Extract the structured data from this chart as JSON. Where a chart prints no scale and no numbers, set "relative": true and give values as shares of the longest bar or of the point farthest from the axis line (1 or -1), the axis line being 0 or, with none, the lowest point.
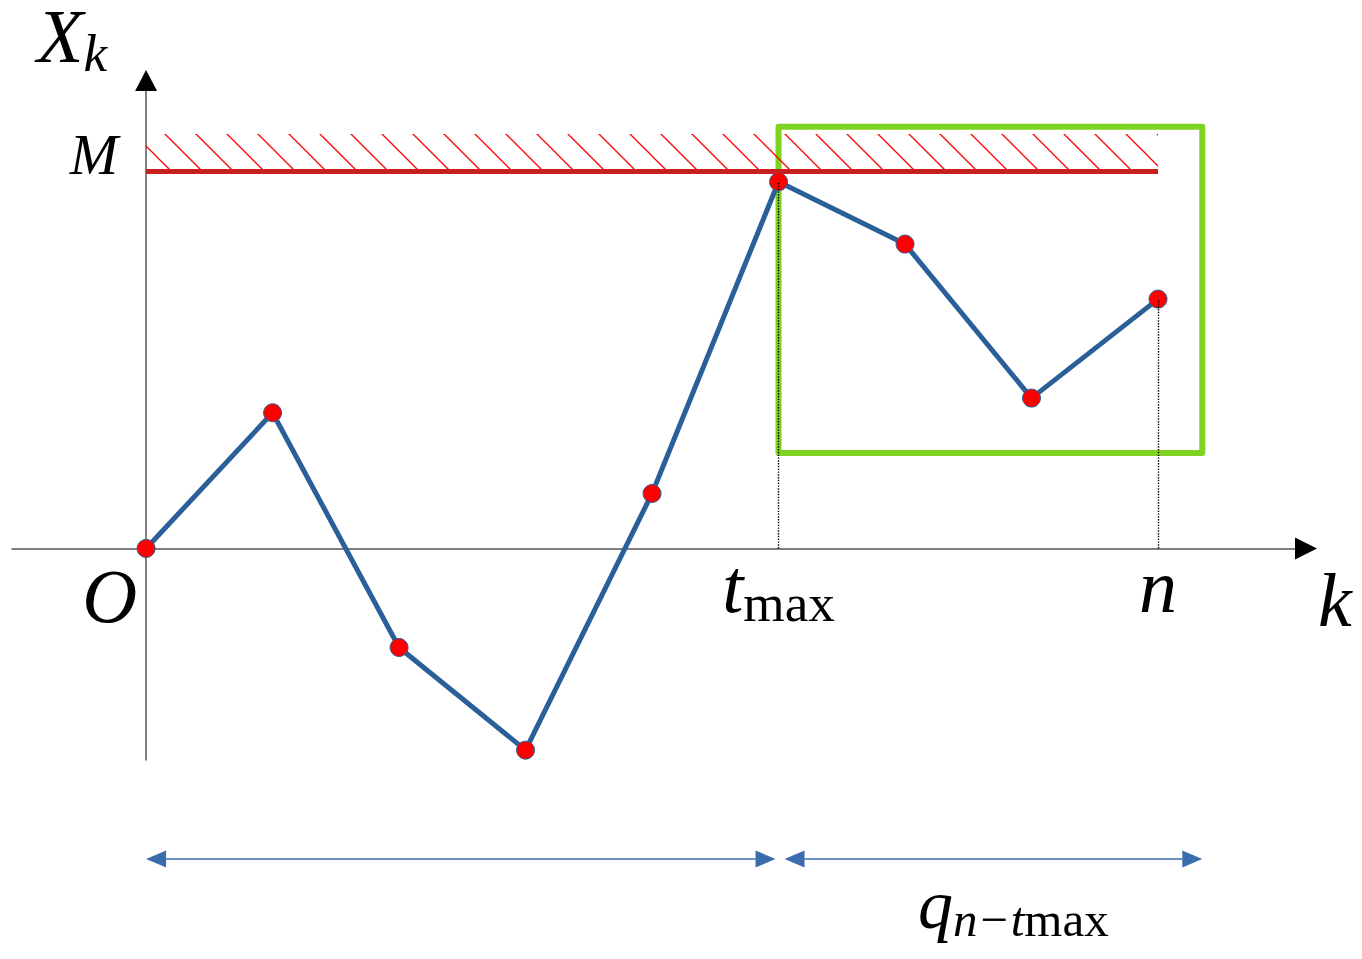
{
  "chart_data": {
    "type": "line",
    "xlabel": "k",
    "ylabel": "X$_{k}$",
    "relative": true,
    "categories": [
      null,
      null,
      null,
      null,
      null,
      "t$_{max}$",
      null,
      null,
      "n"
    ],
    "series": [
      {
        "color": "#2b5f99",
        "colors": [
          "#ff0000",
          "#ff0000",
          "#ff0000",
          "#ff0000",
          "#ff0000",
          "#ff0000",
          "#ff0000",
          "#ff0000",
          "#ff0000"
        ],
        "values": [
          0,
          0.37,
          -0.27,
          -0.55,
          0.15,
          1,
          0.83,
          0.41,
          0.68
        ]
      }
    ],
    "marker": "circle",
    "ref_lines": [
      {
        "axis": "y",
        "value": 1.03,
        "label": "M",
        "color": "#c8201f"
      },
      {
        "axis": "x",
        "value": "t$_{max}$",
        "line_style": "dotted",
        "color": "#000000"
      },
      {
        "axis": "x",
        "value": "n",
        "line_style": "dotted",
        "color": "#000000"
      }
    ],
    "bands": [
      {
        "axis": "y",
        "from": 1.03,
        "to": 1.13,
        "color": "#ff0000"
      }
    ],
    "annotations": [
      "O",
      "q$_{n−t}$$_{max}$"
    ]
  }
}
